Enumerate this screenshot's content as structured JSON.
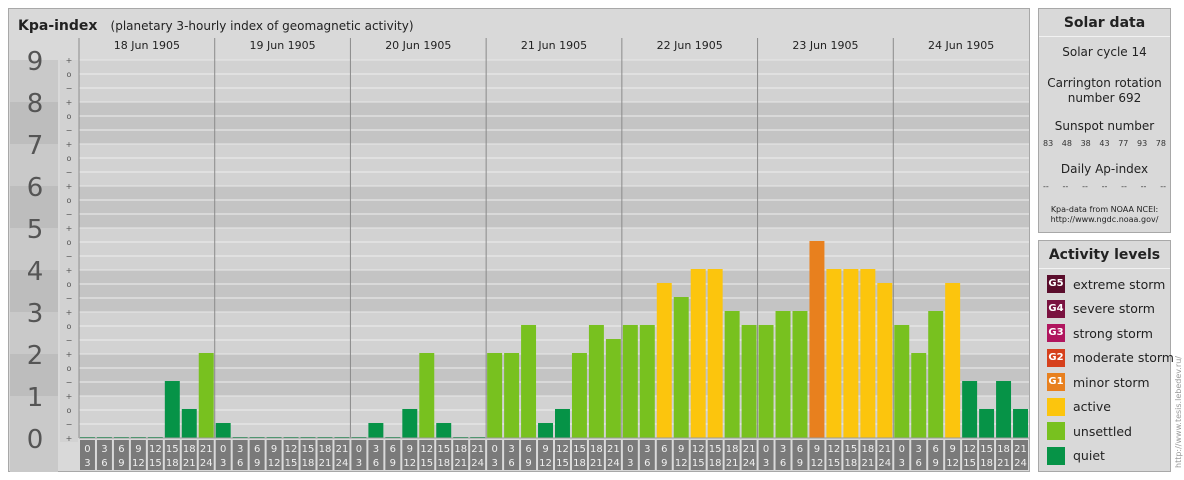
{
  "header": {
    "title": "Kpa-index",
    "subtitle": "(planetary 3-hourly index of geomagnetic activity)"
  },
  "chart_data": {
    "type": "bar",
    "y_range": [
      0,
      9
    ],
    "y_ticks": [
      "0",
      "1",
      "2",
      "3",
      "4",
      "5",
      "6",
      "7",
      "8",
      "9"
    ],
    "sub_ticks": [
      "+",
      "−",
      "o"
    ],
    "days": [
      "18 Jun 1905",
      "19 Jun 1905",
      "20 Jun 1905",
      "21 Jun 1905",
      "22 Jun 1905",
      "23 Jun 1905",
      "24 Jun 1905"
    ],
    "interval_start_labels": [
      "0",
      "3",
      "6",
      "9",
      "12",
      "15",
      "18",
      "21"
    ],
    "interval_end_labels": [
      "3",
      "6",
      "9",
      "12",
      "15",
      "18",
      "21",
      "24"
    ],
    "values": [
      0,
      0,
      0,
      0,
      0,
      1.333,
      0.667,
      2,
      0.333,
      0,
      0,
      0,
      0,
      0,
      0,
      0,
      0,
      0.333,
      0,
      0.667,
      2,
      0.333,
      0,
      0,
      2,
      2,
      2.667,
      0.333,
      0.667,
      2,
      2.667,
      2.333,
      2.667,
      2.667,
      3.667,
      3.333,
      4,
      4,
      3,
      2.667,
      2.667,
      3,
      3,
      4.667,
      4,
      4,
      4,
      3.667,
      2.667,
      2,
      3,
      3.667,
      1.333,
      0.667,
      1.333,
      0.667
    ],
    "grid": true
  },
  "solar": {
    "title": "Solar data",
    "cycle": "Solar cycle 14",
    "carrington_line1": "Carrington rotation",
    "carrington_line2": "number 692",
    "sunspot_title": "Sunspot number",
    "sunspots": [
      "83",
      "48",
      "38",
      "43",
      "77",
      "93",
      "78"
    ],
    "ap_title": "Daily Ap-index",
    "ap_values": [
      "--",
      "--",
      "--",
      "--",
      "--",
      "--",
      "--"
    ],
    "source_line1": "Kpa-data from NOAA NCEI:",
    "source_line2": "http://www.ngdc.noaa.gov/"
  },
  "activity": {
    "title": "Activity levels",
    "levels": [
      {
        "badge": "G5",
        "label": "extreme storm",
        "color": "#5a0d2c"
      },
      {
        "badge": "G4",
        "label": "severe storm",
        "color": "#7a1240"
      },
      {
        "badge": "G3",
        "label": "strong storm",
        "color": "#b0155e"
      },
      {
        "badge": "G2",
        "label": "moderate storm",
        "color": "#d6401c"
      },
      {
        "badge": "G1",
        "label": "minor storm",
        "color": "#e8801e"
      },
      {
        "badge": "",
        "label": "active",
        "color": "#fcc50d"
      },
      {
        "badge": "",
        "label": "unsettled",
        "color": "#78c11f"
      },
      {
        "badge": "",
        "label": "quiet",
        "color": "#069347"
      }
    ]
  },
  "watermark": "http://www.tesis.lebedev.ru/"
}
